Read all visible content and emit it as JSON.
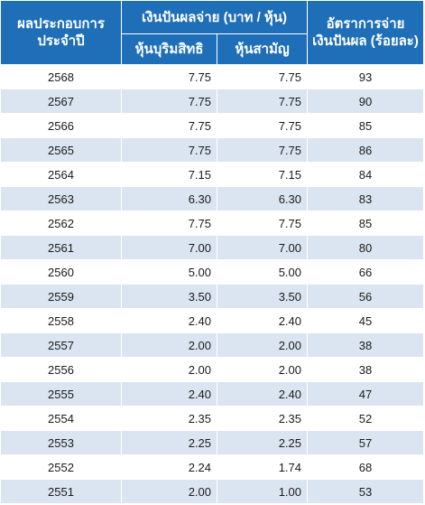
{
  "header": {
    "year_label": "ผลประกอบการประจำปี",
    "dividend_group_label": "เงินปันผลจ่าย (บาท / หุ้น)",
    "preferred_label": "หุ้นบุริมสิทธิ",
    "common_label": "หุ้นสามัญ",
    "payout_label": "อัตราการจ่ายเงินปันผล (ร้อยละ)"
  },
  "rows": [
    {
      "year": "2568",
      "preferred": "7.75",
      "common": "7.75",
      "payout": "93"
    },
    {
      "year": "2567",
      "preferred": "7.75",
      "common": "7.75",
      "payout": "90"
    },
    {
      "year": "2566",
      "preferred": "7.75",
      "common": "7.75",
      "payout": "85"
    },
    {
      "year": "2565",
      "preferred": "7.75",
      "common": "7.75",
      "payout": "86"
    },
    {
      "year": "2564",
      "preferred": "7.15",
      "common": "7.15",
      "payout": "84"
    },
    {
      "year": "2563",
      "preferred": "6.30",
      "common": "6.30",
      "payout": "83"
    },
    {
      "year": "2562",
      "preferred": "7.75",
      "common": "7.75",
      "payout": "85"
    },
    {
      "year": "2561",
      "preferred": "7.00",
      "common": "7.00",
      "payout": "80"
    },
    {
      "year": "2560",
      "preferred": "5.00",
      "common": "5.00",
      "payout": "66"
    },
    {
      "year": "2559",
      "preferred": "3.50",
      "common": "3.50",
      "payout": "56"
    },
    {
      "year": "2558",
      "preferred": "2.40",
      "common": "2.40",
      "payout": "45"
    },
    {
      "year": "2557",
      "preferred": "2.00",
      "common": "2.00",
      "payout": "38"
    },
    {
      "year": "2556",
      "preferred": "2.00",
      "common": "2.00",
      "payout": "38"
    },
    {
      "year": "2555",
      "preferred": "2.40",
      "common": "2.40",
      "payout": "47"
    },
    {
      "year": "2554",
      "preferred": "2.35",
      "common": "2.35",
      "payout": "52"
    },
    {
      "year": "2553",
      "preferred": "2.25",
      "common": "2.25",
      "payout": "57"
    },
    {
      "year": "2552",
      "preferred": "2.24",
      "common": "1.74",
      "payout": "68"
    },
    {
      "year": "2551",
      "preferred": "2.00",
      "common": "1.00",
      "payout": "53"
    }
  ],
  "colors": {
    "header_bg": "#1f6fb8",
    "stripe_bg": "#dbe5f1",
    "text": "#1a1a1a"
  }
}
